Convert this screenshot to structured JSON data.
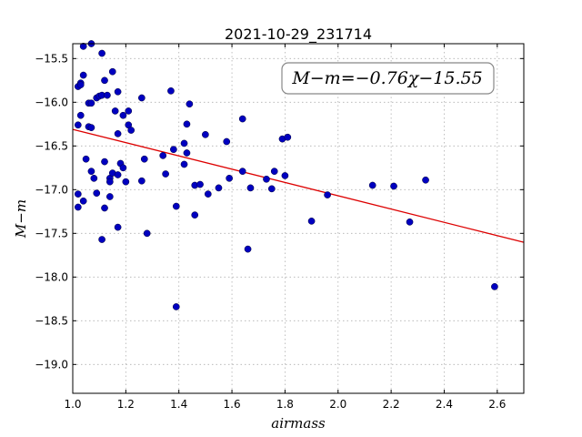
{
  "chart_data": {
    "type": "scatter",
    "title": "2021-10-29_231714",
    "xlabel": "airmass",
    "ylabel": "M−m",
    "xlim": [
      1.0,
      2.7
    ],
    "ylim": [
      -19.33,
      -15.33
    ],
    "y_inverted": true,
    "grid": true,
    "x_ticks": [
      "1.0",
      "1.2",
      "1.4",
      "1.6",
      "1.8",
      "2.0",
      "2.2",
      "2.4",
      "2.6"
    ],
    "x_tick_values": [
      1.0,
      1.2,
      1.4,
      1.6,
      1.8,
      2.0,
      2.2,
      2.4,
      2.6
    ],
    "y_ticks": [
      "−15.5",
      "−16.0",
      "−16.5",
      "−17.0",
      "−17.5",
      "−18.0",
      "−18.5",
      "−19.0"
    ],
    "y_tick_values": [
      -15.5,
      -16.0,
      -16.5,
      -17.0,
      -17.5,
      -18.0,
      -18.5,
      -19.0
    ],
    "annotation": "M−m=−0.76χ−15.55",
    "fit": {
      "slope": -0.76,
      "intercept": -15.55,
      "color": "#dd0000"
    },
    "point_color": "#0000c0",
    "points": [
      [
        1.02,
        -15.82
      ],
      [
        1.03,
        -15.78
      ],
      [
        1.03,
        -15.8
      ],
      [
        1.04,
        -15.36
      ],
      [
        1.04,
        -15.69
      ],
      [
        1.07,
        -15.33
      ],
      [
        1.02,
        -16.26
      ],
      [
        1.03,
        -16.15
      ],
      [
        1.06,
        -16.01
      ],
      [
        1.07,
        -16.01
      ],
      [
        1.09,
        -15.95
      ],
      [
        1.1,
        -15.93
      ],
      [
        1.11,
        -15.92
      ],
      [
        1.13,
        -15.92
      ],
      [
        1.11,
        -15.44
      ],
      [
        1.12,
        -15.75
      ],
      [
        1.15,
        -15.65
      ],
      [
        1.06,
        -16.28
      ],
      [
        1.07,
        -16.29
      ],
      [
        1.16,
        -16.1
      ],
      [
        1.17,
        -15.88
      ],
      [
        1.19,
        -16.15
      ],
      [
        1.21,
        -16.1
      ],
      [
        1.21,
        -16.26
      ],
      [
        1.22,
        -16.32
      ],
      [
        1.26,
        -15.95
      ],
      [
        1.37,
        -15.87
      ],
      [
        1.44,
        -16.02
      ],
      [
        1.43,
        -16.25
      ],
      [
        1.17,
        -16.36
      ],
      [
        1.05,
        -16.65
      ],
      [
        1.07,
        -16.79
      ],
      [
        1.08,
        -16.87
      ],
      [
        1.12,
        -16.68
      ],
      [
        1.14,
        -16.87
      ],
      [
        1.15,
        -16.81
      ],
      [
        1.14,
        -16.91
      ],
      [
        1.18,
        -16.7
      ],
      [
        1.19,
        -16.75
      ],
      [
        1.2,
        -16.91
      ],
      [
        1.17,
        -16.83
      ],
      [
        1.27,
        -16.65
      ],
      [
        1.26,
        -16.9
      ],
      [
        1.34,
        -16.61
      ],
      [
        1.38,
        -16.54
      ],
      [
        1.42,
        -16.47
      ],
      [
        1.43,
        -16.58
      ],
      [
        1.42,
        -16.71
      ],
      [
        1.35,
        -16.82
      ],
      [
        1.5,
        -16.37
      ],
      [
        1.58,
        -16.45
      ],
      [
        1.64,
        -16.19
      ],
      [
        1.79,
        -16.42
      ],
      [
        1.81,
        -16.4
      ],
      [
        1.64,
        -16.79
      ],
      [
        1.59,
        -16.87
      ],
      [
        1.76,
        -16.79
      ],
      [
        1.8,
        -16.84
      ],
      [
        1.73,
        -16.88
      ],
      [
        1.46,
        -16.95
      ],
      [
        1.48,
        -16.94
      ],
      [
        1.51,
        -17.05
      ],
      [
        1.55,
        -16.98
      ],
      [
        1.67,
        -16.98
      ],
      [
        1.75,
        -16.99
      ],
      [
        1.02,
        -17.05
      ],
      [
        1.04,
        -17.13
      ],
      [
        1.02,
        -17.2
      ],
      [
        1.09,
        -17.04
      ],
      [
        1.12,
        -17.21
      ],
      [
        1.14,
        -17.08
      ],
      [
        1.17,
        -17.43
      ],
      [
        1.11,
        -17.57
      ],
      [
        1.28,
        -17.5
      ],
      [
        1.39,
        -17.19
      ],
      [
        1.46,
        -17.29
      ],
      [
        1.9,
        -17.36
      ],
      [
        1.96,
        -17.06
      ],
      [
        2.13,
        -16.95
      ],
      [
        2.21,
        -16.96
      ],
      [
        2.27,
        -17.37
      ],
      [
        2.33,
        -16.89
      ],
      [
        1.66,
        -17.68
      ],
      [
        1.39,
        -18.34
      ],
      [
        2.59,
        -18.11
      ]
    ]
  }
}
